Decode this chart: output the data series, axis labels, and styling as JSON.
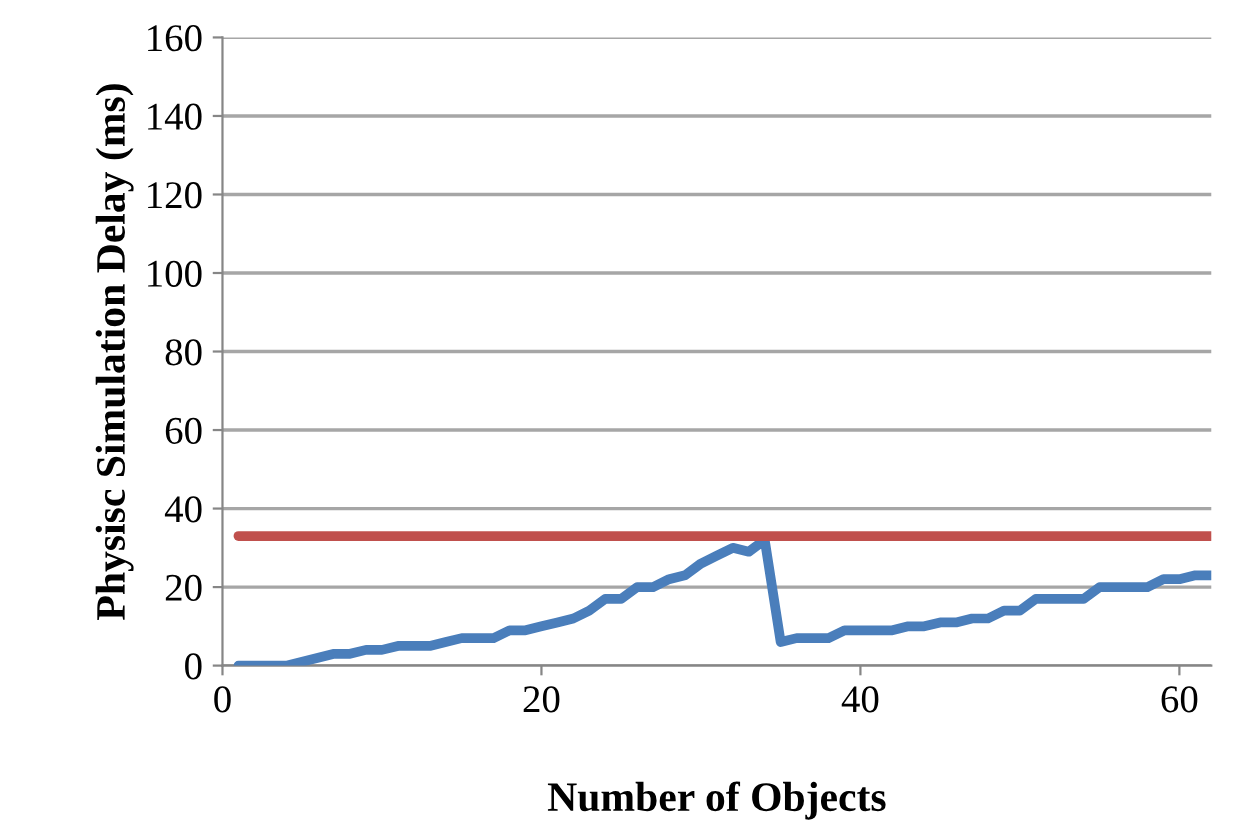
{
  "chart_data": {
    "type": "line",
    "xlabel": "Number of Objects",
    "ylabel": "Physisc Simulation Delay (ms)",
    "xlim": [
      0,
      62
    ],
    "xticks": [
      0,
      20,
      40,
      60
    ],
    "ylim": [
      0,
      160
    ],
    "yticks": [
      0,
      20,
      40,
      60,
      80,
      100,
      120,
      140,
      160
    ],
    "grid": "y",
    "legend": false,
    "line_style": "solid",
    "series": [
      {
        "color": "#4a7ebb",
        "x": [
          1,
          2,
          3,
          4,
          5,
          6,
          7,
          8,
          9,
          10,
          11,
          12,
          13,
          14,
          15,
          16,
          17,
          18,
          19,
          20,
          21,
          22,
          23,
          24,
          25,
          26,
          27,
          28,
          29,
          30,
          31,
          32,
          33,
          34,
          35,
          36,
          37,
          38,
          39,
          40,
          41,
          42,
          43,
          44,
          45,
          46,
          47,
          48,
          49,
          50,
          51,
          52,
          53,
          54,
          55,
          56,
          57,
          58,
          59,
          60,
          61,
          62
        ],
        "values": [
          0,
          0,
          0,
          0,
          1,
          2,
          3,
          3,
          4,
          4,
          5,
          5,
          5,
          6,
          7,
          7,
          7,
          9,
          9,
          10,
          11,
          12,
          14,
          17,
          17,
          20,
          20,
          22,
          23,
          26,
          28,
          30,
          29,
          32,
          6,
          7,
          7,
          7,
          9,
          9,
          9,
          9,
          10,
          10,
          11,
          11,
          12,
          12,
          14,
          14,
          17,
          17,
          17,
          17,
          20,
          20,
          20,
          20,
          22,
          22,
          23,
          23
        ]
      },
      {
        "color": "#c0504d",
        "x": [
          1,
          62
        ],
        "values": [
          33,
          33
        ]
      }
    ]
  }
}
